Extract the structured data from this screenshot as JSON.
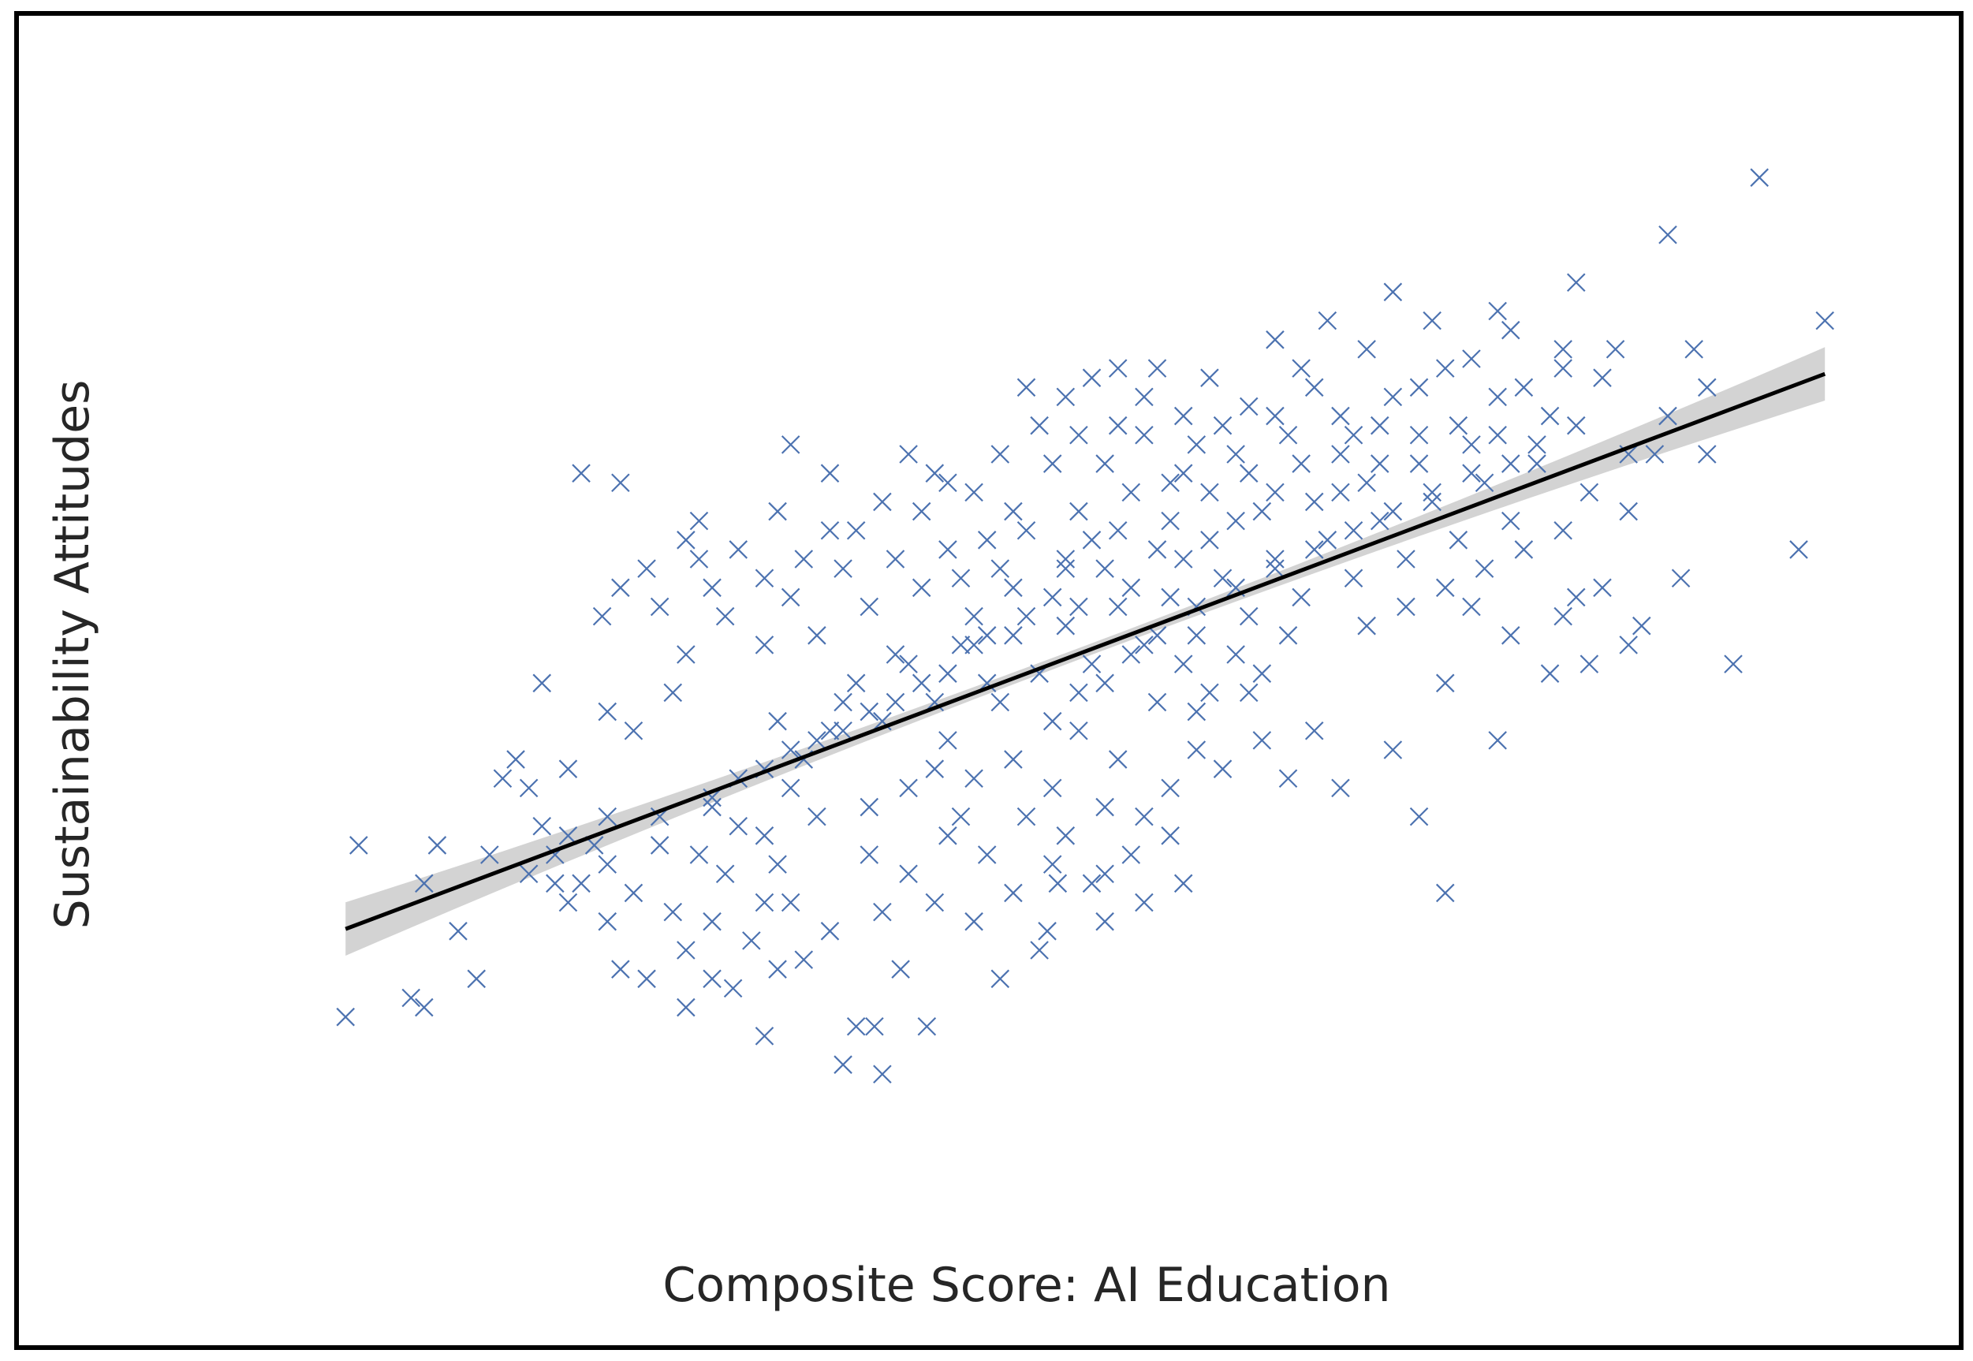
{
  "chart_data": {
    "type": "scatter",
    "title": "",
    "xlabel": "Composite Score: AI Education",
    "ylabel": "Sustainability Attitudes",
    "xlim": [
      -3.2,
      3.2
    ],
    "ylim": [
      -3.0,
      3.2
    ],
    "grid": false,
    "legend": "none",
    "marker": "x",
    "colors": {
      "points": "#4c72b0",
      "fit_line": "#000000",
      "confidence_band": "#d3d3d3",
      "frame": "#000000"
    },
    "fit": {
      "intercept": 0.0,
      "slope": 0.515,
      "ci_halfwidth_edges": 0.14,
      "ci_halfwidth_center": 0.03
    },
    "points": [
      [
        -2.6,
        -1.8
      ],
      [
        -2.35,
        -1.7
      ],
      [
        -2.3,
        -1.75
      ],
      [
        -2.1,
        -1.6
      ],
      [
        -2.17,
        -1.35
      ],
      [
        -2.55,
        -0.9
      ],
      [
        -2.3,
        -1.1
      ],
      [
        -1.8,
        -1.1
      ],
      [
        -1.75,
        -0.85
      ],
      [
        -1.9,
        -0.6
      ],
      [
        -1.85,
        -0.05
      ],
      [
        -1.65,
        -0.9
      ],
      [
        -1.7,
        -1.1
      ],
      [
        -1.6,
        -1.3
      ],
      [
        -1.55,
        -1.55
      ],
      [
        -1.45,
        -1.6
      ],
      [
        -1.3,
        -1.75
      ],
      [
        -1.3,
        -1.45
      ],
      [
        -1.2,
        -1.6
      ],
      [
        -1.12,
        -1.65
      ],
      [
        -1.0,
        -1.2
      ],
      [
        -1.0,
        -1.9
      ],
      [
        -0.95,
        -1.55
      ],
      [
        -0.85,
        -1.5
      ],
      [
        -0.7,
        -2.05
      ],
      [
        -0.58,
        -1.85
      ],
      [
        -0.48,
        -1.55
      ],
      [
        -0.1,
        -1.6
      ],
      [
        0.05,
        -1.45
      ],
      [
        0.08,
        -1.35
      ],
      [
        0.12,
        -1.1
      ],
      [
        0.25,
        -1.1
      ],
      [
        0.3,
        -1.3
      ],
      [
        -0.55,
        -2.1
      ],
      [
        -0.65,
        -1.85
      ],
      [
        -0.38,
        -1.85
      ],
      [
        -1.62,
        0.3
      ],
      [
        -1.55,
        0.45
      ],
      [
        -1.35,
        -0.1
      ],
      [
        -1.25,
        0.8
      ],
      [
        -1.25,
        0.6
      ],
      [
        -0.9,
        1.2
      ],
      [
        -0.75,
        1.05
      ],
      [
        -0.55,
        0.9
      ],
      [
        -1.55,
        1.0
      ],
      [
        -1.7,
        1.05
      ],
      [
        -1.6,
        -0.75
      ],
      [
        -1.75,
        -0.5
      ],
      [
        -1.85,
        -0.8
      ],
      [
        -2.0,
        -0.55
      ],
      [
        -1.95,
        -0.45
      ],
      [
        -1.6,
        -0.2
      ],
      [
        -1.5,
        -0.3
      ],
      [
        -1.1,
        -0.55
      ],
      [
        -1.2,
        -0.65
      ],
      [
        -1.0,
        -0.85
      ],
      [
        -0.95,
        -0.25
      ],
      [
        -0.85,
        -0.45
      ],
      [
        -0.7,
        -0.15
      ],
      [
        -0.6,
        -0.7
      ],
      [
        -0.45,
        -0.6
      ],
      [
        -0.3,
        -0.35
      ],
      [
        -0.2,
        -0.55
      ],
      [
        -0.05,
        -0.45
      ],
      [
        0.1,
        -0.6
      ],
      [
        0.2,
        -0.3
      ],
      [
        0.35,
        -0.45
      ],
      [
        0.45,
        -0.75
      ],
      [
        0.55,
        -0.6
      ],
      [
        0.65,
        -0.2
      ],
      [
        0.75,
        -0.5
      ],
      [
        0.85,
        -0.1
      ],
      [
        -1.3,
        0.1
      ],
      [
        -1.15,
        0.3
      ],
      [
        -1.0,
        0.15
      ],
      [
        -0.9,
        0.4
      ],
      [
        -0.8,
        0.2
      ],
      [
        -0.7,
        0.55
      ],
      [
        -0.6,
        0.35
      ],
      [
        -0.5,
        0.1
      ],
      [
        -0.4,
        0.45
      ],
      [
        -0.3,
        0.65
      ],
      [
        -0.2,
        0.3
      ],
      [
        -0.1,
        0.55
      ],
      [
        0.0,
        0.75
      ],
      [
        0.1,
        0.4
      ],
      [
        0.2,
        0.85
      ],
      [
        0.3,
        0.55
      ],
      [
        0.4,
        0.95
      ],
      [
        0.5,
        0.65
      ],
      [
        0.6,
        1.05
      ],
      [
        0.7,
        0.7
      ],
      [
        0.8,
        1.15
      ],
      [
        0.9,
        0.85
      ],
      [
        1.0,
        1.25
      ],
      [
        1.1,
        0.9
      ],
      [
        1.2,
        1.35
      ],
      [
        1.3,
        1.0
      ],
      [
        1.4,
        1.45
      ],
      [
        1.5,
        1.1
      ],
      [
        1.6,
        1.6
      ],
      [
        1.7,
        1.2
      ],
      [
        1.8,
        1.25
      ],
      [
        -0.9,
        -0.4
      ],
      [
        -0.75,
        -0.3
      ],
      [
        -0.65,
        -0.05
      ],
      [
        -0.55,
        -0.25
      ],
      [
        -0.45,
        0.05
      ],
      [
        -0.35,
        -0.15
      ],
      [
        -0.25,
        0.15
      ],
      [
        -0.15,
        -0.05
      ],
      [
        -0.05,
        0.2
      ],
      [
        0.05,
        0.0
      ],
      [
        0.15,
        0.25
      ],
      [
        0.25,
        0.05
      ],
      [
        0.35,
        0.35
      ],
      [
        0.45,
        0.15
      ],
      [
        0.55,
        0.4
      ],
      [
        0.65,
        0.2
      ],
      [
        0.75,
        0.5
      ],
      [
        0.85,
        0.3
      ],
      [
        0.95,
        0.6
      ],
      [
        1.05,
        0.4
      ],
      [
        1.15,
        0.7
      ],
      [
        1.25,
        0.5
      ],
      [
        1.35,
        0.8
      ],
      [
        1.45,
        0.6
      ],
      [
        1.55,
        0.9
      ],
      [
        1.65,
        0.7
      ],
      [
        1.75,
        1.0
      ],
      [
        1.85,
        0.8
      ],
      [
        1.95,
        1.1
      ],
      [
        -0.35,
        1.05
      ],
      [
        -0.2,
        0.95
      ],
      [
        -0.1,
        1.15
      ],
      [
        0.1,
        1.1
      ],
      [
        0.2,
        1.25
      ],
      [
        0.35,
        1.3
      ],
      [
        0.45,
        1.45
      ],
      [
        0.6,
        1.35
      ],
      [
        0.7,
        1.55
      ],
      [
        0.85,
        1.4
      ],
      [
        0.95,
        1.75
      ],
      [
        1.05,
        1.6
      ],
      [
        1.15,
        1.85
      ],
      [
        1.3,
        1.7
      ],
      [
        1.4,
        2.0
      ],
      [
        1.55,
        1.85
      ],
      [
        1.1,
        1.5
      ],
      [
        1.25,
        1.25
      ],
      [
        0.5,
        1.6
      ],
      [
        0.0,
        1.5
      ],
      [
        0.25,
        1.55
      ],
      [
        0.35,
        1.6
      ],
      [
        0.55,
        1.0
      ],
      [
        0.15,
        0.55
      ],
      [
        0.25,
        0.7
      ],
      [
        -0.05,
        0.85
      ],
      [
        -0.15,
        0.7
      ],
      [
        -0.25,
        0.5
      ],
      [
        -0.5,
        0.6
      ],
      [
        -0.65,
        0.75
      ],
      [
        0.1,
        -0.25
      ],
      [
        0.2,
        -0.1
      ],
      [
        0.3,
        -0.05
      ],
      [
        0.4,
        0.1
      ],
      [
        0.5,
        -0.15
      ],
      [
        0.6,
        0.05
      ],
      [
        0.7,
        -0.1
      ],
      [
        0.8,
        0.1
      ],
      [
        0.9,
        0.0
      ],
      [
        1.0,
        0.2
      ],
      [
        -1.4,
        -0.75
      ],
      [
        -1.25,
        -0.95
      ],
      [
        -1.15,
        -1.05
      ],
      [
        -0.95,
        -1.0
      ],
      [
        -0.8,
        -0.75
      ],
      [
        -0.6,
        -0.95
      ],
      [
        -0.45,
        -1.05
      ],
      [
        -0.3,
        -0.85
      ],
      [
        -0.15,
        -0.95
      ],
      [
        0.0,
        -0.75
      ],
      [
        0.15,
        -0.85
      ],
      [
        0.3,
        -0.7
      ],
      [
        0.4,
        -0.95
      ],
      [
        0.55,
        -0.85
      ],
      [
        0.65,
        -0.4
      ],
      [
        -0.35,
        -0.5
      ],
      [
        -0.25,
        -0.75
      ],
      [
        -0.1,
        -0.15
      ],
      [
        1.3,
        0.25
      ],
      [
        1.45,
        0.35
      ],
      [
        1.6,
        0.45
      ],
      [
        1.75,
        0.55
      ],
      [
        1.9,
        0.65
      ],
      [
        2.05,
        0.75
      ],
      [
        2.15,
        0.95
      ],
      [
        2.3,
        1.15
      ],
      [
        2.45,
        1.35
      ],
      [
        2.0,
        1.35
      ],
      [
        1.9,
        1.5
      ],
      [
        2.05,
        1.6
      ],
      [
        1.8,
        1.9
      ],
      [
        2.2,
        1.55
      ],
      [
        2.3,
        0.85
      ],
      [
        2.1,
        0.4
      ],
      [
        2.5,
        0.5
      ],
      [
        2.3,
        0.15
      ],
      [
        1.6,
        -0.05
      ],
      [
        1.4,
        -0.4
      ],
      [
        1.2,
        -0.6
      ],
      [
        1.5,
        -0.75
      ],
      [
        1.6,
        -1.15
      ],
      [
        1.1,
        -0.3
      ],
      [
        1.0,
        -0.55
      ],
      [
        0.9,
        -0.35
      ],
      [
        1.8,
        -0.35
      ],
      [
        2.0,
        0.0
      ],
      [
        2.15,
        0.05
      ],
      [
        2.7,
        0.05
      ],
      [
        2.35,
        0.25
      ],
      [
        2.2,
        0.45
      ],
      [
        2.05,
        0.3
      ],
      [
        1.85,
        0.2
      ],
      [
        1.7,
        0.35
      ],
      [
        2.8,
        2.6
      ],
      [
        2.45,
        2.3
      ],
      [
        2.1,
        2.05
      ],
      [
        2.6,
        1.15
      ],
      [
        3.05,
        1.85
      ],
      [
        2.95,
        0.65
      ],
      [
        2.55,
        1.7
      ],
      [
        2.6,
        1.5
      ],
      [
        2.4,
        1.15
      ],
      [
        2.25,
        1.7
      ],
      [
        2.05,
        1.7
      ],
      [
        1.85,
        1.8
      ],
      [
        1.7,
        1.65
      ],
      [
        1.5,
        1.5
      ],
      [
        1.35,
        1.3
      ],
      [
        1.2,
        1.15
      ],
      [
        -2.25,
        -0.9
      ],
      [
        -2.05,
        -0.95
      ],
      [
        -1.9,
        -1.05
      ],
      [
        -1.75,
        -1.2
      ],
      [
        -1.5,
        -1.15
      ],
      [
        -1.35,
        -1.25
      ],
      [
        -1.2,
        -1.3
      ],
      [
        -1.05,
        -1.4
      ],
      [
        -0.9,
        -1.2
      ],
      [
        -0.75,
        -1.35
      ],
      [
        -0.55,
        -1.25
      ],
      [
        -0.35,
        -1.2
      ],
      [
        -0.2,
        -1.3
      ],
      [
        -0.05,
        -1.15
      ],
      [
        0.1,
        -1.0
      ],
      [
        0.3,
        -1.05
      ],
      [
        0.45,
        -1.2
      ],
      [
        0.6,
        -1.1
      ],
      [
        -1.0,
        0.5
      ],
      [
        -0.85,
        0.6
      ],
      [
        -0.75,
        0.75
      ],
      [
        -0.95,
        0.85
      ],
      [
        -1.1,
        0.65
      ],
      [
        -1.2,
        0.45
      ],
      [
        -1.4,
        0.35
      ],
      [
        -1.45,
        0.55
      ],
      [
        -1.3,
        0.7
      ],
      [
        -0.4,
        0.85
      ],
      [
        -0.3,
        1.0
      ],
      [
        -0.45,
        1.15
      ],
      [
        0.05,
        1.3
      ],
      [
        0.15,
        1.45
      ],
      [
        0.3,
        1.1
      ],
      [
        0.45,
        1.25
      ],
      [
        0.65,
        1.2
      ],
      [
        0.75,
        1.3
      ],
      [
        0.95,
        1.35
      ],
      [
        1.05,
        1.1
      ],
      [
        1.2,
        0.95
      ],
      [
        1.35,
        1.1
      ],
      [
        1.5,
        1.25
      ],
      [
        1.65,
        1.3
      ],
      [
        1.8,
        1.45
      ],
      [
        1.95,
        1.2
      ],
      [
        2.1,
        1.3
      ],
      [
        0.95,
        0.95
      ],
      [
        0.8,
        0.8
      ],
      [
        0.6,
        0.6
      ],
      [
        0.4,
        0.45
      ],
      [
        0.2,
        0.35
      ],
      [
        0.0,
        0.3
      ],
      [
        -0.2,
        0.15
      ],
      [
        -0.4,
        -0.05
      ],
      [
        -0.6,
        -0.2
      ],
      [
        -0.8,
        -0.35
      ],
      [
        -1.0,
        -0.5
      ],
      [
        -1.2,
        -0.7
      ],
      [
        -1.4,
        -0.9
      ],
      [
        -1.6,
        -1.0
      ],
      [
        -1.8,
        -0.95
      ],
      [
        0.7,
        0.95
      ],
      [
        0.85,
        1.05
      ],
      [
        0.55,
        0.8
      ],
      [
        0.35,
        0.75
      ],
      [
        0.15,
        0.6
      ],
      [
        -0.05,
        0.45
      ],
      [
        -0.15,
        0.2
      ],
      [
        -0.3,
        0.0
      ],
      [
        -0.5,
        -0.15
      ],
      [
        -0.7,
        -0.3
      ],
      [
        -0.9,
        -0.6
      ],
      [
        -1.1,
        -0.8
      ],
      [
        0.5,
        0.2
      ],
      [
        0.65,
        0.35
      ],
      [
        0.8,
        0.45
      ],
      [
        0.95,
        0.55
      ],
      [
        1.1,
        0.65
      ],
      [
        1.25,
        0.75
      ],
      [
        1.4,
        0.85
      ],
      [
        1.55,
        0.95
      ],
      [
        1.7,
        1.05
      ],
      [
        1.85,
        1.1
      ]
    ]
  }
}
